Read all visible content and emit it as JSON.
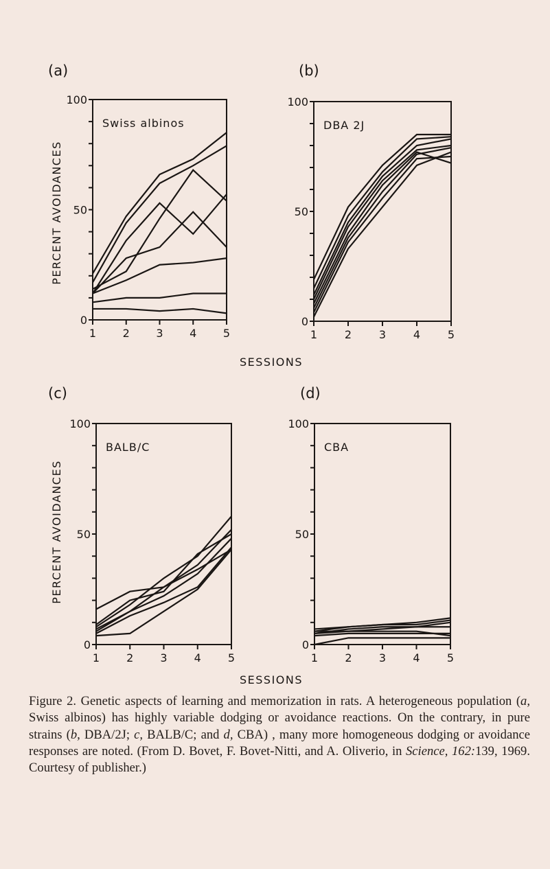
{
  "figure": {
    "panel_labels": [
      "(a)",
      "(b)",
      "(c)",
      "(d)"
    ],
    "y_axis_label": "PERCENT AVOIDANCES",
    "x_axis_label": "SESSIONS",
    "line_color": "#1a1614",
    "background": "#f4e8e1"
  },
  "chart_data": [
    {
      "type": "line",
      "panel": "(a)",
      "title": "Swiss albinos",
      "ylabel": "PERCENT AVOIDANCES",
      "xlabel": "SESSIONS",
      "x": [
        1,
        2,
        3,
        4,
        5
      ],
      "ylim": [
        0,
        100
      ],
      "xlim": [
        1,
        5
      ],
      "yticklabels": [
        "100",
        "50",
        "0"
      ],
      "xticklabels": [
        "1",
        "2",
        "3",
        "4",
        "5"
      ],
      "series": [
        {
          "values": [
            21,
            47,
            66,
            73,
            85
          ]
        },
        {
          "values": [
            17,
            44,
            62,
            70,
            79
          ]
        },
        {
          "values": [
            14,
            22,
            46,
            68,
            54
          ]
        },
        {
          "values": [
            12,
            36,
            53,
            39,
            57
          ]
        },
        {
          "values": [
            12,
            28,
            33,
            49,
            33
          ]
        },
        {
          "values": [
            12,
            18,
            25,
            26,
            28
          ]
        },
        {
          "values": [
            8,
            10,
            10,
            12,
            12
          ]
        },
        {
          "values": [
            5,
            5,
            4,
            5,
            3
          ]
        }
      ]
    },
    {
      "type": "line",
      "panel": "(b)",
      "title": "DBA 2J",
      "ylabel": "",
      "xlabel": "SESSIONS",
      "x": [
        1,
        2,
        3,
        4,
        5
      ],
      "ylim": [
        0,
        100
      ],
      "xlim": [
        1,
        5
      ],
      "yticklabels": [
        "100",
        "50",
        "0"
      ],
      "xticklabels": [
        "1",
        "2",
        "3",
        "4",
        "5"
      ],
      "series": [
        {
          "values": [
            19,
            52,
            71,
            85,
            85
          ]
        },
        {
          "values": [
            15,
            48,
            68,
            83,
            84
          ]
        },
        {
          "values": [
            12,
            45,
            66,
            80,
            83
          ]
        },
        {
          "values": [
            10,
            43,
            64,
            78,
            80
          ]
        },
        {
          "values": [
            8,
            40,
            62,
            77,
            72
          ]
        },
        {
          "values": [
            6,
            38,
            59,
            76,
            79
          ]
        },
        {
          "values": [
            4,
            36,
            56,
            74,
            75
          ]
        },
        {
          "values": [
            2,
            33,
            52,
            71,
            77
          ]
        }
      ]
    },
    {
      "type": "line",
      "panel": "(c)",
      "title": "BALB/C",
      "ylabel": "PERCENT AVOIDANCES",
      "xlabel": "",
      "x": [
        1,
        2,
        3,
        4,
        5
      ],
      "ylim": [
        0,
        100
      ],
      "xlim": [
        1,
        5
      ],
      "yticklabels": [
        "100",
        "50",
        "0"
      ],
      "xticklabels": [
        "1",
        "2",
        "3",
        "4",
        "5"
      ],
      "series": [
        {
          "values": [
            16,
            24,
            26,
            34,
            43
          ]
        },
        {
          "values": [
            8,
            18,
            30,
            40,
            58
          ]
        },
        {
          "values": [
            7,
            15,
            26,
            36,
            52
          ]
        },
        {
          "values": [
            9,
            20,
            24,
            41,
            50
          ]
        },
        {
          "values": [
            6,
            15,
            22,
            32,
            48
          ]
        },
        {
          "values": [
            5,
            13,
            19,
            26,
            44
          ]
        },
        {
          "values": [
            4,
            5,
            15,
            25,
            43
          ]
        }
      ]
    },
    {
      "type": "line",
      "panel": "(d)",
      "title": "CBA",
      "ylabel": "",
      "xlabel": "SESSIONS",
      "x": [
        1,
        2,
        3,
        4,
        5
      ],
      "ylim": [
        0,
        100
      ],
      "xlim": [
        1,
        5
      ],
      "yticklabels": [
        "100",
        "50",
        "0"
      ],
      "xticklabels": [
        "1",
        "2",
        "3",
        "4",
        "5"
      ],
      "series": [
        {
          "values": [
            7,
            8,
            9,
            10,
            12
          ]
        },
        {
          "values": [
            6,
            8,
            9,
            9,
            11
          ]
        },
        {
          "values": [
            5,
            7,
            8,
            8,
            10
          ]
        },
        {
          "values": [
            5,
            6,
            7,
            8,
            8
          ]
        },
        {
          "values": [
            4,
            5,
            5,
            5,
            5
          ]
        },
        {
          "values": [
            0,
            3,
            3,
            3,
            3
          ]
        },
        {
          "values": [
            6,
            6,
            6,
            6,
            4
          ]
        }
      ]
    }
  ],
  "caption": {
    "label": "Figure 2.",
    "text_1": " Genetic aspects of learning and memorization in rats. A heterogeneous population (",
    "a": "a,",
    "text_2": " Swiss albinos) has highly variable dodging or avoidance reactions. On the contrary, in pure strains (",
    "b": "b,",
    "text_3": " DBA/2J; ",
    "c": "c,",
    "text_4": " BALB/C; and ",
    "d": "d,",
    "text_5": " CBA) , many more homogeneous dodging or avoidance responses are noted. (From D. Bovet, F. Bovet-Nitti, and A. Oliverio, in ",
    "journal": "Science, 162:",
    "text_6": "139, 1969. Courtesy of publisher.)"
  }
}
